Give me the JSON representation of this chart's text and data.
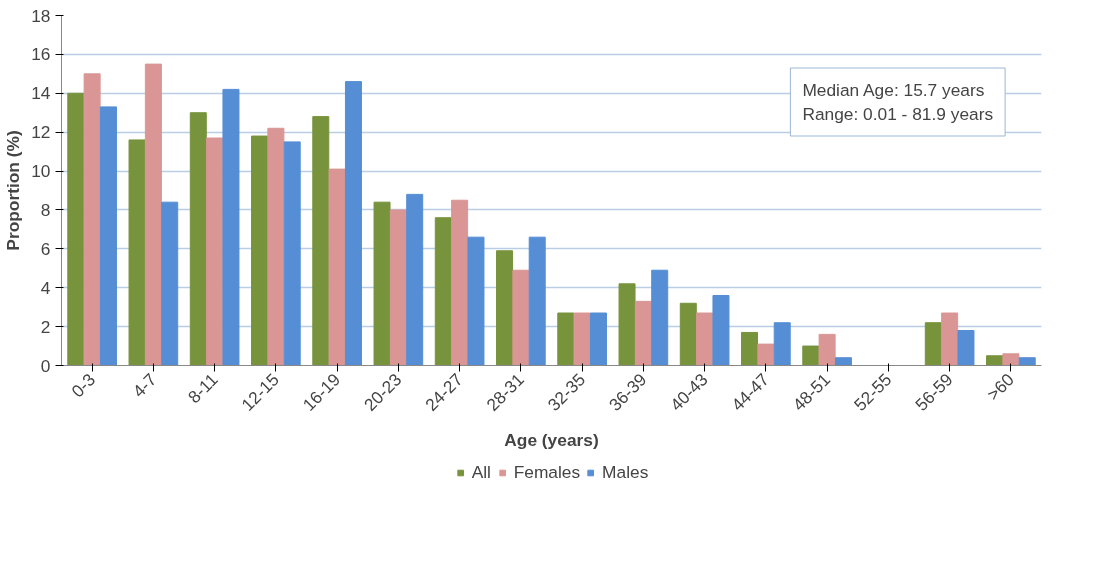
{
  "chart_data": {
    "type": "bar",
    "xlabel": "Age (years)",
    "ylabel": "Proportion (%)",
    "categories": [
      "0-3",
      "4-7",
      "8-11",
      "12-15",
      "16-19",
      "20-23",
      "24-27",
      "28-31",
      "32-35",
      "36-39",
      "40-43",
      "44-47",
      "48-51",
      "52-55",
      "56-59",
      ">60"
    ],
    "series": [
      {
        "name": "All",
        "color": "#77933c",
        "values": [
          14.0,
          11.6,
          13.0,
          11.8,
          12.8,
          8.4,
          7.6,
          5.9,
          2.7,
          4.2,
          3.2,
          1.7,
          1.0,
          0,
          2.2,
          0.5
        ]
      },
      {
        "name": "Females",
        "color": "#d99694",
        "values": [
          15.0,
          15.5,
          11.7,
          12.2,
          10.1,
          8.0,
          8.5,
          4.9,
          2.7,
          3.3,
          2.7,
          1.1,
          1.6,
          0,
          2.7,
          0.6
        ]
      },
      {
        "name": "Males",
        "color": "#558ed5",
        "values": [
          13.3,
          8.4,
          14.2,
          11.5,
          14.6,
          8.8,
          6.6,
          6.6,
          2.7,
          4.9,
          3.6,
          2.2,
          0.4,
          0,
          1.8,
          0.4
        ]
      }
    ],
    "ylim": [
      0,
      18
    ],
    "yticks": [
      0,
      2,
      4,
      6,
      8,
      10,
      12,
      14,
      16,
      18
    ],
    "grid": "y",
    "legend": "bottom",
    "annotations": [
      "Median Age:  15.7 years",
      "Range: 0.01 - 81.9 years"
    ]
  }
}
